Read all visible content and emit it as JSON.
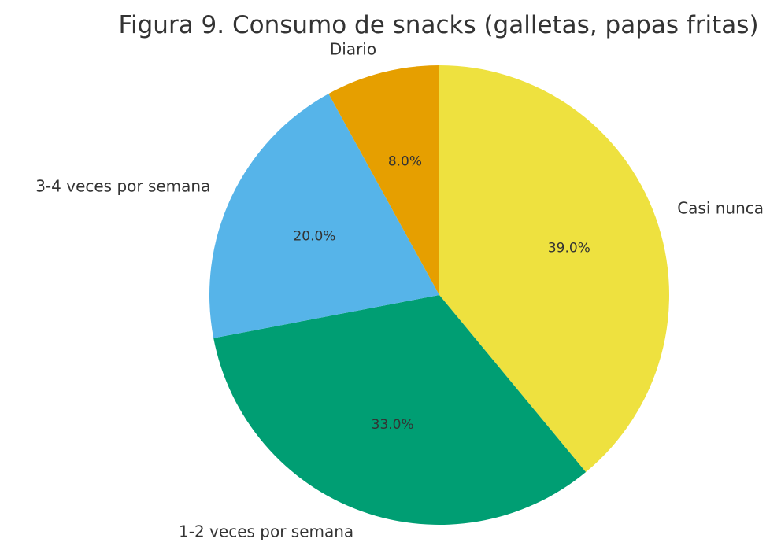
{
  "chart_data": {
    "type": "pie",
    "title": "Figura 9. Consumo de snacks (galletas, papas fritas)",
    "start_angle_deg": 90,
    "direction": "clockwise",
    "slices": [
      {
        "label": "Casi nunca",
        "value": 39.0,
        "pct_label": "39.0%",
        "color": "#EEE13F"
      },
      {
        "label": "1-2 veces por semana",
        "value": 33.0,
        "pct_label": "33.0%",
        "color": "#009E73"
      },
      {
        "label": "3-4 veces por semana",
        "value": 20.0,
        "pct_label": "20.0%",
        "color": "#56B4E9"
      },
      {
        "label": "Diario",
        "value": 8.0,
        "pct_label": "8.0%",
        "color": "#E69F00"
      }
    ]
  }
}
